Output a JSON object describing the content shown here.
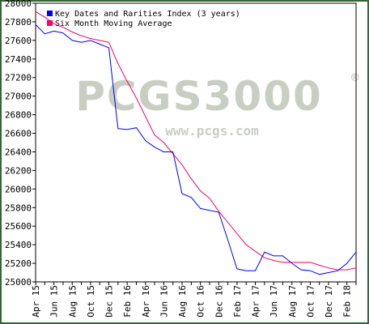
{
  "chart_data": {
    "type": "line",
    "legend_position": "top-left",
    "grid": false,
    "ylim": [
      25000,
      28000
    ],
    "y_ticks": [
      25000,
      25200,
      25400,
      25600,
      25800,
      26000,
      26200,
      26400,
      26600,
      26800,
      27000,
      27200,
      27400,
      27600,
      27800,
      28000
    ],
    "x": [
      "2015-04",
      "2015-05",
      "2015-06",
      "2015-07",
      "2015-08",
      "2015-09",
      "2015-10",
      "2015-11",
      "2015-12",
      "2016-01",
      "2016-02",
      "2016-03",
      "2016-04",
      "2016-05",
      "2016-06",
      "2016-07",
      "2016-08",
      "2016-09",
      "2016-10",
      "2016-11",
      "2016-12",
      "2017-01",
      "2017-02",
      "2017-03",
      "2017-04",
      "2017-05",
      "2017-06",
      "2017-07",
      "2017-08",
      "2017-09",
      "2017-10",
      "2017-11",
      "2017-12",
      "2018-01",
      "2018-02",
      "2018-03"
    ],
    "x_tick_labels": [
      "Apr 15",
      "Jun 15",
      "Aug 15",
      "Oct 15",
      "Dec 15",
      "Feb 16",
      "Apr 16",
      "Jun 16",
      "Aug 16",
      "Oct 16",
      "Dec 16",
      "Feb 17",
      "Apr 17",
      "Jun 17",
      "Aug 17",
      "Oct 17",
      "Dec 17",
      "Feb 18"
    ],
    "series": [
      {
        "name": "Key Dates and Rarities Index (3 years)",
        "color": "#0000ff",
        "values": [
          27770,
          27670,
          27700,
          27680,
          27600,
          27580,
          27600,
          27560,
          27520,
          26650,
          26640,
          26660,
          26520,
          26450,
          26400,
          26400,
          25950,
          25910,
          25790,
          25770,
          25750,
          25450,
          25140,
          25120,
          25120,
          25320,
          25280,
          25280,
          25200,
          25130,
          25120,
          25080,
          25100,
          25120,
          25200,
          25320
        ]
      },
      {
        "name": "Six Month Moving Average",
        "color": "#ff0066",
        "values": [
          27910,
          27850,
          27780,
          27740,
          27690,
          27650,
          27620,
          27600,
          27580,
          27350,
          27160,
          26980,
          26780,
          26580,
          26500,
          26380,
          26260,
          26110,
          25980,
          25900,
          25760,
          25640,
          25520,
          25400,
          25330,
          25260,
          25230,
          25210,
          25210,
          25210,
          25210,
          25180,
          25150,
          25130,
          25130,
          25150
        ]
      }
    ]
  },
  "watermark": {
    "main": "PCGS3000",
    "sub": "www.pcgs.com",
    "mark": "®"
  },
  "colors": {
    "frame": "#336633",
    "plot_border": "#000000",
    "background": "#ffffff"
  }
}
